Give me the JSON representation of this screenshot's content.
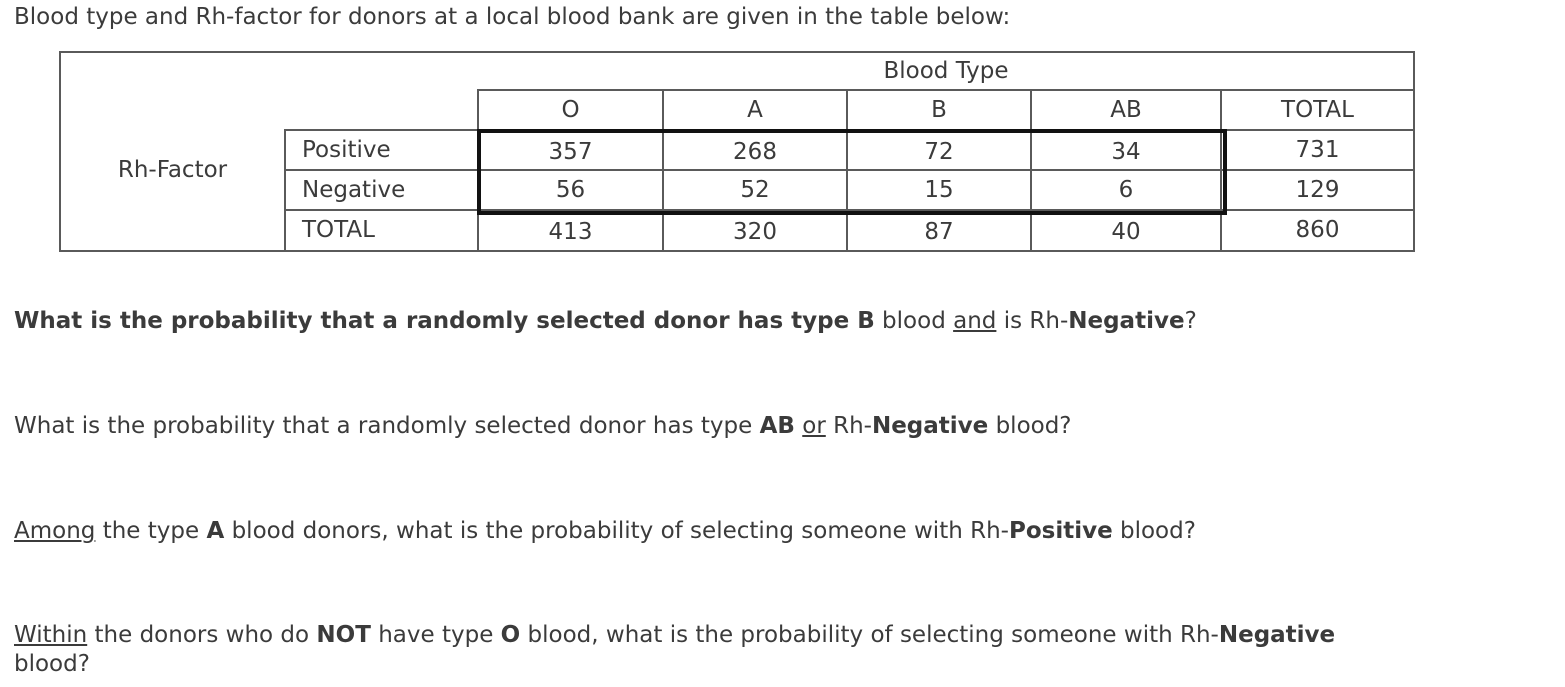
{
  "intro": "Blood type and Rh-factor for donors at a local blood bank are given in the table below:",
  "table": {
    "col_group_header": "Blood Type",
    "row_group_header": "Rh-Factor",
    "columns": [
      "O",
      "A",
      "B",
      "AB",
      "TOTAL"
    ],
    "rows": [
      {
        "label": "Positive",
        "values": [
          "357",
          "268",
          "72",
          "34",
          "731"
        ]
      },
      {
        "label": "Negative",
        "values": [
          "56",
          "52",
          "15",
          "6",
          "129"
        ]
      },
      {
        "label": "TOTAL",
        "values": [
          "413",
          "320",
          "87",
          "40",
          "860"
        ]
      }
    ]
  },
  "questions": {
    "q1": {
      "bold1": "What is the probability that a randomly selected donor has type B",
      "text1": " blood ",
      "underline": "and",
      "text2": " is Rh-",
      "bold2": "Negative",
      "text3": "?"
    },
    "q2": {
      "text1": "What is the probability that a randomly selected donor has type ",
      "bold1": "AB",
      "text2": " ",
      "underline": "or",
      "text3": " Rh-",
      "bold2": "Negative",
      "text4": " blood?"
    },
    "q3": {
      "underline": "Among",
      "text1": " the type ",
      "bold1": "A",
      "text2": " blood donors, what is the probability of selecting someone with Rh-",
      "bold2": "Positive",
      "text3": " blood?"
    },
    "q4": {
      "underline": "Within",
      "text1": " the donors who do ",
      "bold1": "NOT",
      "text2": " have type ",
      "bold2": "O",
      "text3": " blood, what is the probability of selecting someone with Rh-",
      "bold3": "Negative",
      "line2": "blood?"
    }
  }
}
